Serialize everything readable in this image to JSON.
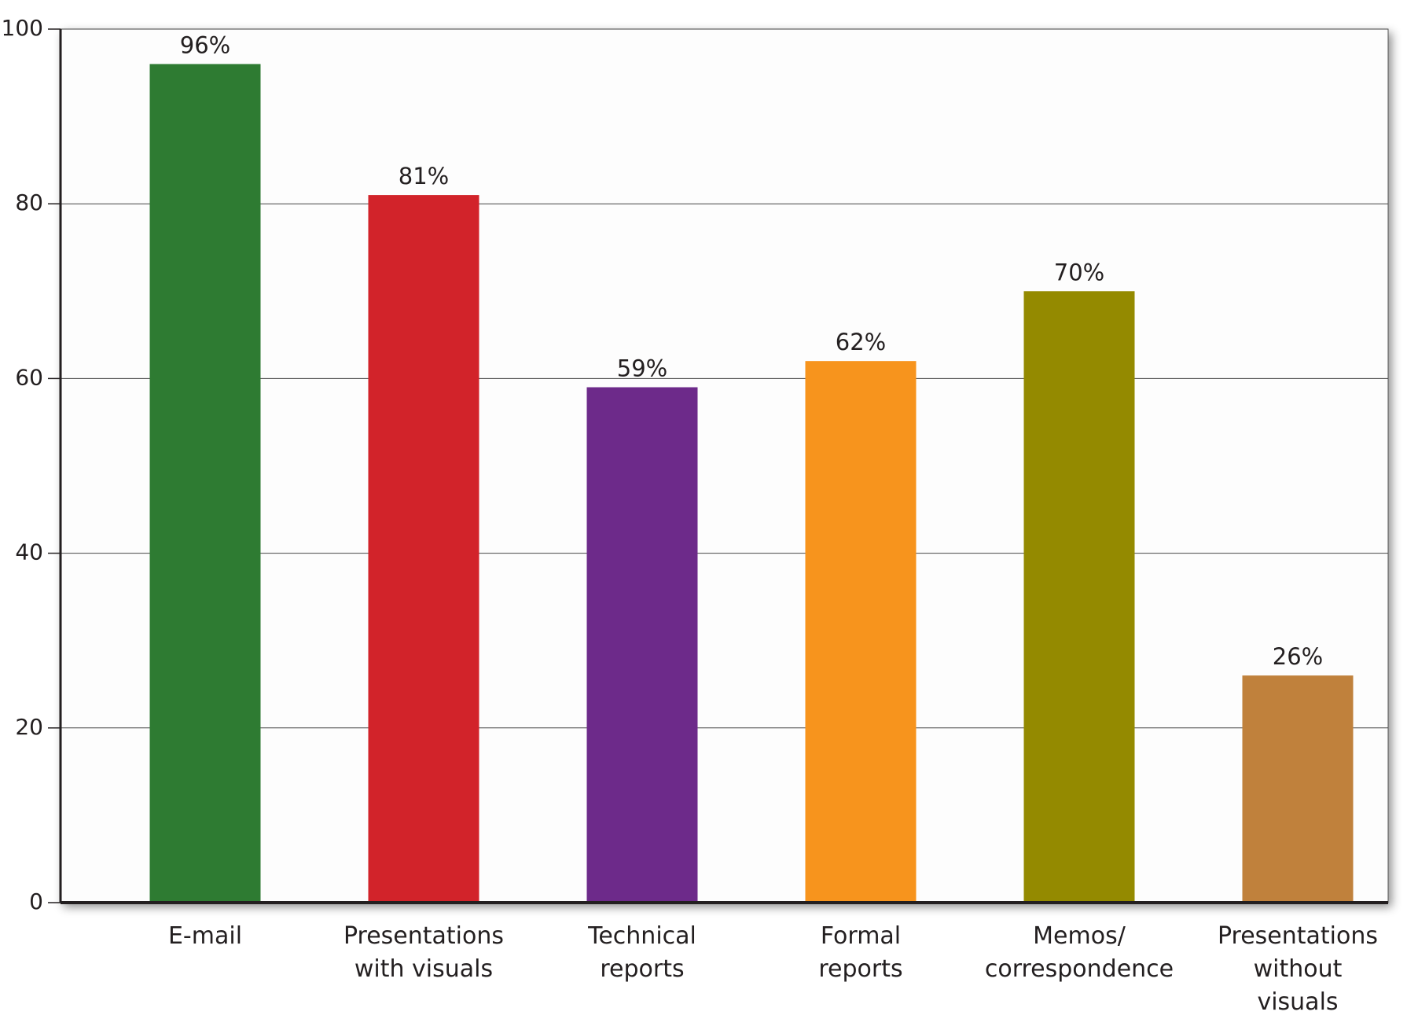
{
  "chart_data": {
    "type": "bar",
    "categories": [
      "E-mail",
      "Presentations\nwith visuals",
      "Technical\nreports",
      "Formal\nreports",
      "Memos/\ncorrespondence",
      "Presentations\nwithout\nvisuals"
    ],
    "values": [
      96,
      81,
      59,
      62,
      70,
      26
    ],
    "value_labels": [
      "96%",
      "81%",
      "59%",
      "62%",
      "70%",
      "26%"
    ],
    "colors": [
      "#2e7b32",
      "#d2232a",
      "#6d2a8a",
      "#f7941d",
      "#948a00",
      "#c0813c"
    ],
    "ylim": [
      0,
      100
    ],
    "yticks": [
      0,
      20,
      40,
      60,
      80,
      100
    ],
    "grid": true
  }
}
